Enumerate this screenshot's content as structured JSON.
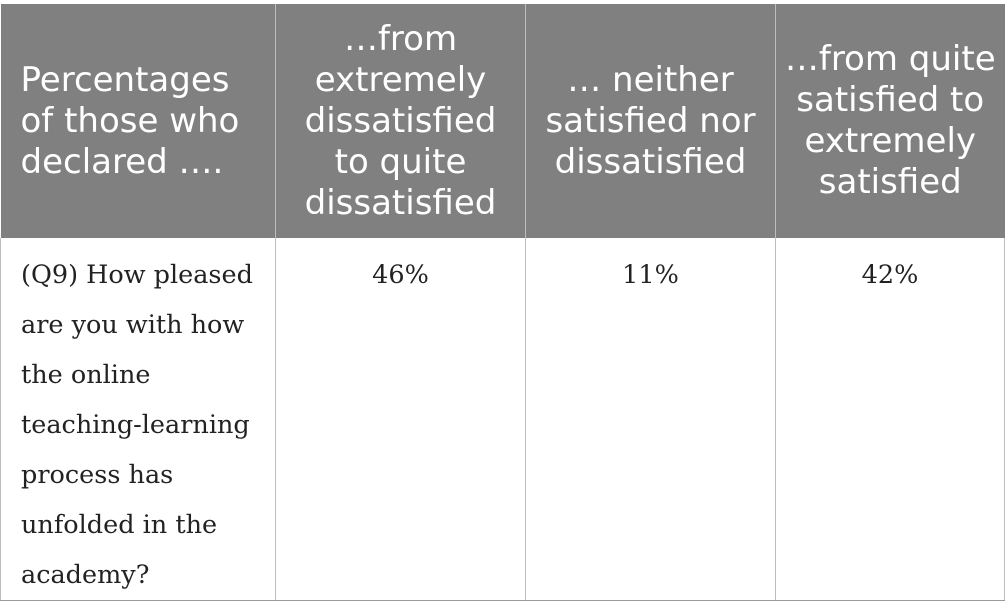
{
  "table": {
    "header": [
      "Percentages of those who declared ….",
      "…from extremely dissatisfied to quite dissatisfied",
      "… neither satisfied nor dissatisfied",
      "…from quite satisfied to extremely satisfied"
    ],
    "rows": [
      {
        "question": "(Q9) How pleased are you with how the online teaching-learning process has unfolded in the academy?",
        "dissatisfied": "46%",
        "neutral": "11%",
        "satisfied": "42%"
      }
    ]
  }
}
